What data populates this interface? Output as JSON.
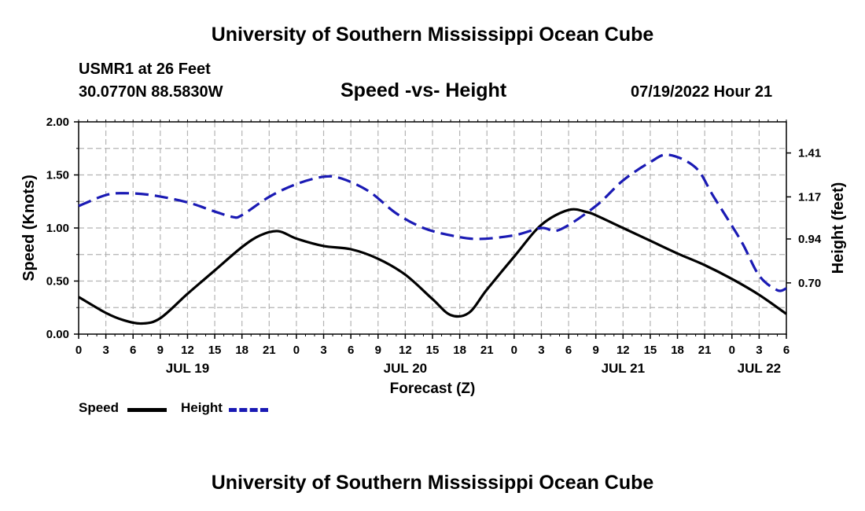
{
  "page": {
    "title_top": "University of Southern Mississippi Ocean Cube",
    "title_bottom": "University of Southern Mississippi Ocean Cube",
    "station": "USMR1 at 26 Feet",
    "location": "30.0770N  88.5830W",
    "timestamp": "07/19/2022 Hour 21"
  },
  "colors": {
    "speed": "#000000",
    "height": "#1a1ab4",
    "grid": "#b4b4b4"
  },
  "chart_data": {
    "type": "line",
    "title": "Speed -vs- Height",
    "xlabel": "Forecast (Z)",
    "ylabel": "Speed (Knots)",
    "y2label": "Height (feet)",
    "xlim": [
      0,
      78
    ],
    "ylim": [
      0,
      2.0
    ],
    "y2lim": [
      0.42,
      1.58
    ],
    "yticks": [
      "0.00",
      "0.50",
      "1.00",
      "1.50",
      "2.00"
    ],
    "y2ticks": [
      "0.70",
      "0.94",
      "1.17",
      "1.41"
    ],
    "xtick_labels": [
      "0",
      "3",
      "6",
      "9",
      "12",
      "15",
      "18",
      "21",
      "0",
      "3",
      "6",
      "9",
      "12",
      "15",
      "18",
      "21",
      "0",
      "3",
      "6",
      "9",
      "12",
      "15",
      "18",
      "21",
      "0",
      "3",
      "6"
    ],
    "date_labels": [
      {
        "label": "JUL 19",
        "x": 12
      },
      {
        "label": "JUL 20",
        "x": 36
      },
      {
        "label": "JUL 21",
        "x": 60
      },
      {
        "label": "JUL 22",
        "x": 75
      }
    ],
    "series": [
      {
        "name": "Speed",
        "axis": "left",
        "style": "solid",
        "x": [
          0,
          3,
          5,
          7,
          9,
          12,
          15,
          18,
          20,
          22,
          24,
          27,
          30,
          33,
          36,
          39,
          41,
          43,
          45,
          48,
          51,
          54,
          56,
          57,
          60,
          63,
          66,
          69,
          72,
          75,
          78
        ],
        "values": [
          0.35,
          0.2,
          0.13,
          0.1,
          0.15,
          0.38,
          0.6,
          0.82,
          0.93,
          0.97,
          0.9,
          0.83,
          0.8,
          0.71,
          0.56,
          0.33,
          0.18,
          0.2,
          0.42,
          0.73,
          1.03,
          1.17,
          1.15,
          1.12,
          1.0,
          0.88,
          0.76,
          0.65,
          0.52,
          0.37,
          0.19
        ]
      },
      {
        "name": "Height",
        "axis": "right",
        "style": "dashed",
        "x": [
          0,
          3,
          5,
          8,
          12,
          15,
          17,
          18,
          21,
          24,
          27,
          29,
          32,
          35,
          38,
          41,
          44,
          48,
          51,
          53,
          57,
          60,
          63,
          65,
          68,
          70,
          73,
          75,
          77,
          78
        ],
        "values": [
          1.12,
          1.18,
          1.19,
          1.18,
          1.14,
          1.09,
          1.06,
          1.07,
          1.17,
          1.24,
          1.28,
          1.27,
          1.2,
          1.08,
          1.0,
          0.96,
          0.94,
          0.96,
          1.0,
          0.99,
          1.12,
          1.26,
          1.36,
          1.4,
          1.33,
          1.17,
          0.93,
          0.74,
          0.66,
          0.67
        ]
      }
    ],
    "legend": {
      "position": "bottom-left",
      "entries": [
        "Speed",
        "Height"
      ]
    }
  }
}
